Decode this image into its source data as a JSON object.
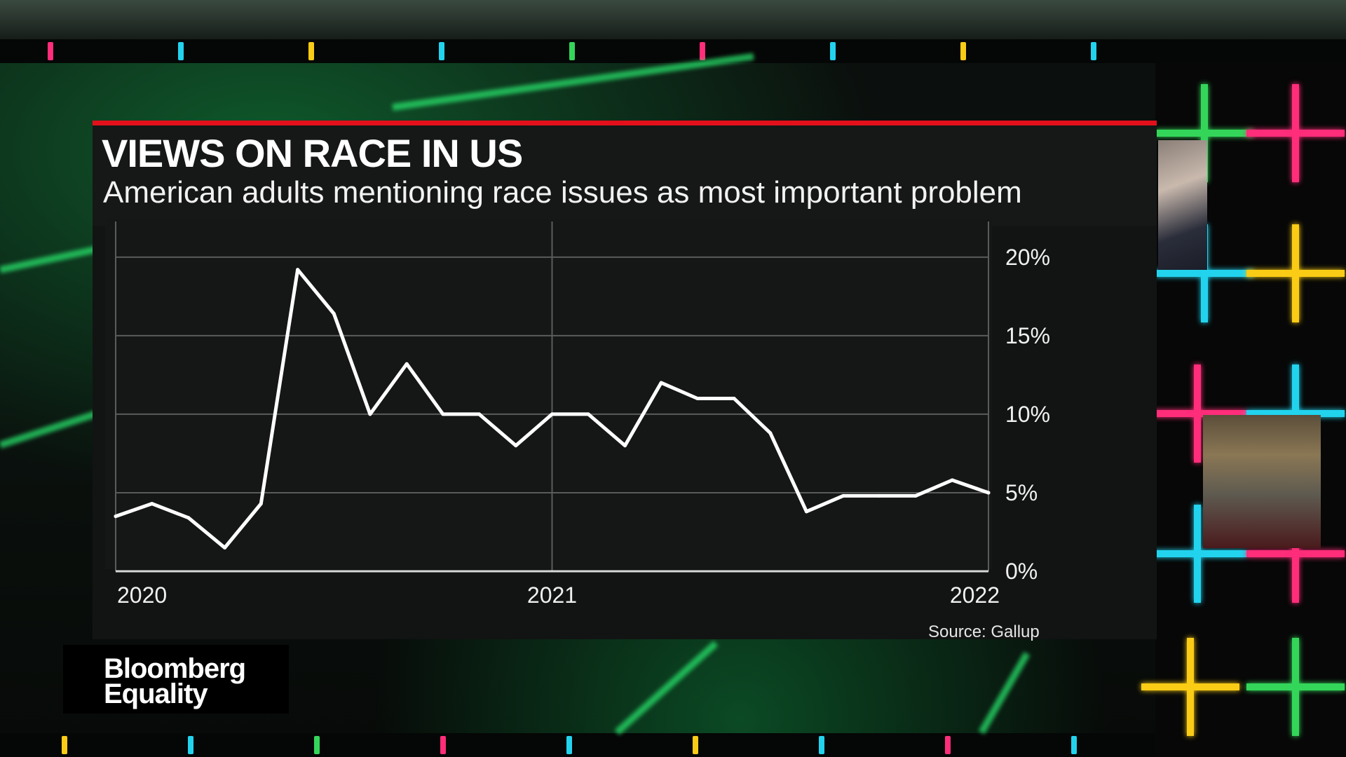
{
  "chart_data": {
    "type": "line",
    "title": "VIEWS ON RACE IN US",
    "subtitle": "American adults mentioning race issues as most important problem",
    "x_tick_labels": [
      "2020",
      "2021",
      "2022"
    ],
    "y_tick_labels": [
      "20%",
      "15%",
      "10%",
      "5%",
      "0%"
    ],
    "y_ticks": [
      20,
      15,
      10,
      5,
      0
    ],
    "ylim": [
      0,
      22
    ],
    "xlim": [
      2020.0,
      2022.0
    ],
    "grid": true,
    "source": "Source: Gallup",
    "series": [
      {
        "x": [
          2020.0,
          2020.083,
          2020.167,
          2020.25,
          2020.333,
          2020.417,
          2020.5,
          2020.583,
          2020.667,
          2020.75,
          2020.833,
          2020.917,
          2021.0,
          2021.083,
          2021.167,
          2021.25,
          2021.333,
          2021.417,
          2021.5,
          2021.583,
          2021.667,
          2021.75,
          2021.833,
          2021.917,
          2022.0
        ],
        "values": [
          3.5,
          4.3,
          3.4,
          1.5,
          4.3,
          19.2,
          16.4,
          10.0,
          13.2,
          10.0,
          10.0,
          8.0,
          10.0,
          10.0,
          8.0,
          12.0,
          11.0,
          11.0,
          8.8,
          3.8,
          4.8,
          4.8,
          4.8,
          5.8,
          5.0
        ]
      }
    ],
    "line_color": "#ffffff"
  },
  "branding": {
    "line1": "Bloomberg",
    "line2": "Equality"
  },
  "colors": {
    "accent_red": "#e3101b",
    "panel": "#121413",
    "studio_green": "#28e06a"
  }
}
